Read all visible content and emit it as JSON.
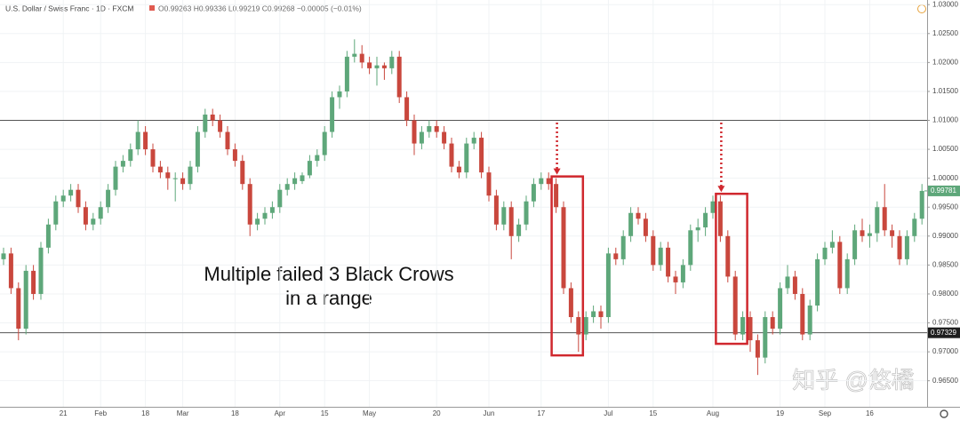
{
  "chart_data": {
    "type": "candlestick",
    "title": "U.S. Dollar / Swiss Franc · 1D · FXCM",
    "ohlc_readout": "O0.99263 H0.99336 L0.99219 C0.99268 −0.00005 (−0.01%)",
    "annotation": [
      "Multiple failed 3 Black Crows",
      "in a range"
    ],
    "watermark": "知乎 @悠橘",
    "up_color": "#5ea77a",
    "down_color": "#c9473d",
    "highlight_color": "#d0282e",
    "ylim": [
      0.9605,
      1.0308
    ],
    "yticks": [
      {
        "value": 0.965,
        "label": "0.96500"
      },
      {
        "value": 0.97,
        "label": "0.97000"
      },
      {
        "value": 0.975,
        "label": "0.97500"
      },
      {
        "value": 0.98,
        "label": "0.98000"
      },
      {
        "value": 0.985,
        "label": "0.98500"
      },
      {
        "value": 0.99,
        "label": "0.99000"
      },
      {
        "value": 0.995,
        "label": "0.99500"
      },
      {
        "value": 1.0,
        "label": "1.00000"
      },
      {
        "value": 1.005,
        "label": "1.00500"
      },
      {
        "value": 1.01,
        "label": "1.01000"
      },
      {
        "value": 1.015,
        "label": "1.01500"
      },
      {
        "value": 1.02,
        "label": "1.02000"
      },
      {
        "value": 1.025,
        "label": "1.02500"
      },
      {
        "value": 1.03,
        "label": "1.03000"
      }
    ],
    "xticks": [
      {
        "value": 8,
        "label": "21"
      },
      {
        "value": 13,
        "label": "Feb"
      },
      {
        "value": 19,
        "label": "18"
      },
      {
        "value": 24,
        "label": "Mar"
      },
      {
        "value": 31,
        "label": "18"
      },
      {
        "value": 37,
        "label": "Apr"
      },
      {
        "value": 43,
        "label": "15"
      },
      {
        "value": 49,
        "label": "May"
      },
      {
        "value": 58,
        "label": "20"
      },
      {
        "value": 65,
        "label": "Jun"
      },
      {
        "value": 72,
        "label": "17"
      },
      {
        "value": 81,
        "label": "Jul"
      },
      {
        "value": 87,
        "label": "15"
      },
      {
        "value": 95,
        "label": "Aug"
      },
      {
        "value": 104,
        "label": "19"
      },
      {
        "value": 110,
        "label": "Sep"
      },
      {
        "value": 116,
        "label": "16"
      }
    ],
    "hlines": [
      {
        "value": 1.01
      },
      {
        "value": 0.97329,
        "label": "0.97329"
      }
    ],
    "last_price": {
      "value": 0.99781,
      "label": "0.99781"
    },
    "candles": [
      [
        0.986,
        0.988,
        0.985,
        0.987
      ],
      [
        0.987,
        0.988,
        0.98,
        0.981
      ],
      [
        0.981,
        0.982,
        0.972,
        0.974
      ],
      [
        0.974,
        0.985,
        0.973,
        0.984
      ],
      [
        0.984,
        0.985,
        0.979,
        0.98
      ],
      [
        0.98,
        0.989,
        0.979,
        0.988
      ],
      [
        0.988,
        0.993,
        0.987,
        0.992
      ],
      [
        0.992,
        0.997,
        0.991,
        0.996
      ],
      [
        0.996,
        0.998,
        0.995,
        0.997
      ],
      [
        0.997,
        0.999,
        0.996,
        0.998
      ],
      [
        0.998,
        0.999,
        0.994,
        0.995
      ],
      [
        0.995,
        0.996,
        0.991,
        0.992
      ],
      [
        0.992,
        0.994,
        0.991,
        0.993
      ],
      [
        0.993,
        0.996,
        0.992,
        0.995
      ],
      [
        0.995,
        0.999,
        0.994,
        0.998
      ],
      [
        0.998,
        1.003,
        0.997,
        1.002
      ],
      [
        1.002,
        1.004,
        1.001,
        1.003
      ],
      [
        1.003,
        1.006,
        1.002,
        1.005
      ],
      [
        1.005,
        1.01,
        1.004,
        1.008
      ],
      [
        1.008,
        1.009,
        1.004,
        1.005
      ],
      [
        1.005,
        1.006,
        1.001,
        1.002
      ],
      [
        1.002,
        1.003,
        1.0,
        1.001
      ],
      [
        1.001,
        1.002,
        0.998,
        1.0
      ],
      [
        1.0,
        1.001,
        0.996,
        1.0
      ],
      [
        1.0,
        1.001,
        0.998,
        0.999
      ],
      [
        0.999,
        1.003,
        0.998,
        1.002
      ],
      [
        1.002,
        1.009,
        1.001,
        1.008
      ],
      [
        1.008,
        1.012,
        1.007,
        1.011
      ],
      [
        1.011,
        1.012,
        1.009,
        1.01
      ],
      [
        1.01,
        1.011,
        1.007,
        1.008
      ],
      [
        1.008,
        1.009,
        1.004,
        1.005
      ],
      [
        1.005,
        1.006,
        1.002,
        1.003
      ],
      [
        1.003,
        1.004,
        0.998,
        0.999
      ],
      [
        0.999,
        1.0,
        0.99,
        0.992
      ],
      [
        0.992,
        0.994,
        0.991,
        0.993
      ],
      [
        0.993,
        0.995,
        0.992,
        0.994
      ],
      [
        0.994,
        0.996,
        0.993,
        0.995
      ],
      [
        0.995,
        0.999,
        0.994,
        0.998
      ],
      [
        0.998,
        1.0,
        0.997,
        0.999
      ],
      [
        0.999,
        1.001,
        0.998,
        1.0
      ],
      [
        0.9995,
        1.001,
        0.999,
        1.0005
      ],
      [
        1.0005,
        1.004,
        1.0,
        1.003
      ],
      [
        1.003,
        1.005,
        1.002,
        1.004
      ],
      [
        1.004,
        1.009,
        1.003,
        1.008
      ],
      [
        1.008,
        1.015,
        1.007,
        1.014
      ],
      [
        1.014,
        1.016,
        1.012,
        1.015
      ],
      [
        1.015,
        1.022,
        1.014,
        1.021
      ],
      [
        1.021,
        1.024,
        1.02,
        1.0215
      ],
      [
        1.0215,
        1.023,
        1.019,
        1.02
      ],
      [
        1.02,
        1.021,
        1.018,
        1.019
      ],
      [
        1.019,
        1.021,
        1.016,
        1.0195
      ],
      [
        1.0195,
        1.02,
        1.017,
        1.019
      ],
      [
        1.019,
        1.022,
        1.018,
        1.021
      ],
      [
        1.021,
        1.022,
        1.013,
        1.014
      ],
      [
        1.014,
        1.015,
        1.009,
        1.01
      ],
      [
        1.01,
        1.011,
        1.004,
        1.006
      ],
      [
        1.006,
        1.009,
        1.005,
        1.008
      ],
      [
        1.008,
        1.01,
        1.007,
        1.009
      ],
      [
        1.009,
        1.01,
        1.007,
        1.008
      ],
      [
        1.008,
        1.009,
        1.005,
        1.006
      ],
      [
        1.006,
        1.007,
        1.001,
        1.002
      ],
      [
        1.002,
        1.003,
        1.0,
        1.001
      ],
      [
        1.001,
        1.007,
        1.0,
        1.006
      ],
      [
        1.006,
        1.008,
        1.005,
        1.007
      ],
      [
        1.007,
        1.008,
        1.0,
        1.001
      ],
      [
        1.001,
        1.002,
        0.996,
        0.997
      ],
      [
        0.997,
        0.998,
        0.991,
        0.992
      ],
      [
        0.992,
        0.996,
        0.991,
        0.995
      ],
      [
        0.995,
        0.996,
        0.986,
        0.99
      ],
      [
        0.99,
        0.993,
        0.989,
        0.992
      ],
      [
        0.992,
        0.997,
        0.991,
        0.996
      ],
      [
        0.996,
        1.0,
        0.995,
        0.999
      ],
      [
        0.999,
        1.001,
        0.998,
        1.0
      ],
      [
        1.0,
        1.001,
        0.998,
        0.999
      ],
      [
        0.999,
        1.0,
        0.994,
        0.995
      ],
      [
        0.995,
        0.996,
        0.98,
        0.981
      ],
      [
        0.981,
        0.982,
        0.975,
        0.976
      ],
      [
        0.976,
        0.977,
        0.97,
        0.973
      ],
      [
        0.973,
        0.977,
        0.972,
        0.976
      ],
      [
        0.976,
        0.978,
        0.975,
        0.977
      ],
      [
        0.977,
        0.978,
        0.974,
        0.976
      ],
      [
        0.976,
        0.988,
        0.975,
        0.987
      ],
      [
        0.987,
        0.988,
        0.985,
        0.986
      ],
      [
        0.986,
        0.991,
        0.985,
        0.99
      ],
      [
        0.99,
        0.995,
        0.989,
        0.994
      ],
      [
        0.994,
        0.995,
        0.992,
        0.993
      ],
      [
        0.993,
        0.994,
        0.989,
        0.99
      ],
      [
        0.99,
        0.991,
        0.984,
        0.985
      ],
      [
        0.985,
        0.989,
        0.984,
        0.988
      ],
      [
        0.988,
        0.989,
        0.982,
        0.983
      ],
      [
        0.983,
        0.984,
        0.98,
        0.982
      ],
      [
        0.982,
        0.986,
        0.981,
        0.985
      ],
      [
        0.985,
        0.992,
        0.984,
        0.991
      ],
      [
        0.991,
        0.993,
        0.989,
        0.9915
      ],
      [
        0.9915,
        0.995,
        0.99,
        0.994
      ],
      [
        0.994,
        0.997,
        0.993,
        0.996
      ],
      [
        0.996,
        0.997,
        0.989,
        0.99
      ],
      [
        0.99,
        0.991,
        0.982,
        0.983
      ],
      [
        0.983,
        0.984,
        0.972,
        0.973
      ],
      [
        0.973,
        0.977,
        0.972,
        0.976
      ],
      [
        0.976,
        0.977,
        0.97,
        0.972
      ],
      [
        0.972,
        0.973,
        0.966,
        0.969
      ],
      [
        0.969,
        0.977,
        0.968,
        0.976
      ],
      [
        0.976,
        0.977,
        0.973,
        0.974
      ],
      [
        0.974,
        0.982,
        0.973,
        0.981
      ],
      [
        0.981,
        0.985,
        0.98,
        0.983
      ],
      [
        0.983,
        0.984,
        0.979,
        0.98
      ],
      [
        0.98,
        0.981,
        0.972,
        0.973
      ],
      [
        0.973,
        0.979,
        0.972,
        0.978
      ],
      [
        0.978,
        0.987,
        0.977,
        0.986
      ],
      [
        0.986,
        0.989,
        0.985,
        0.988
      ],
      [
        0.988,
        0.991,
        0.987,
        0.989
      ],
      [
        0.989,
        0.99,
        0.98,
        0.981
      ],
      [
        0.981,
        0.987,
        0.98,
        0.986
      ],
      [
        0.986,
        0.992,
        0.985,
        0.991
      ],
      [
        0.991,
        0.993,
        0.989,
        0.99
      ],
      [
        0.99,
        0.992,
        0.988,
        0.9905
      ],
      [
        0.9905,
        0.996,
        0.989,
        0.995
      ],
      [
        0.995,
        0.999,
        0.99,
        0.991
      ],
      [
        0.991,
        0.992,
        0.988,
        0.99
      ],
      [
        0.99,
        0.991,
        0.985,
        0.986
      ],
      [
        0.986,
        0.991,
        0.985,
        0.99
      ],
      [
        0.99,
        0.994,
        0.989,
        0.993
      ],
      [
        0.993,
        0.999,
        0.992,
        0.99781
      ]
    ]
  }
}
